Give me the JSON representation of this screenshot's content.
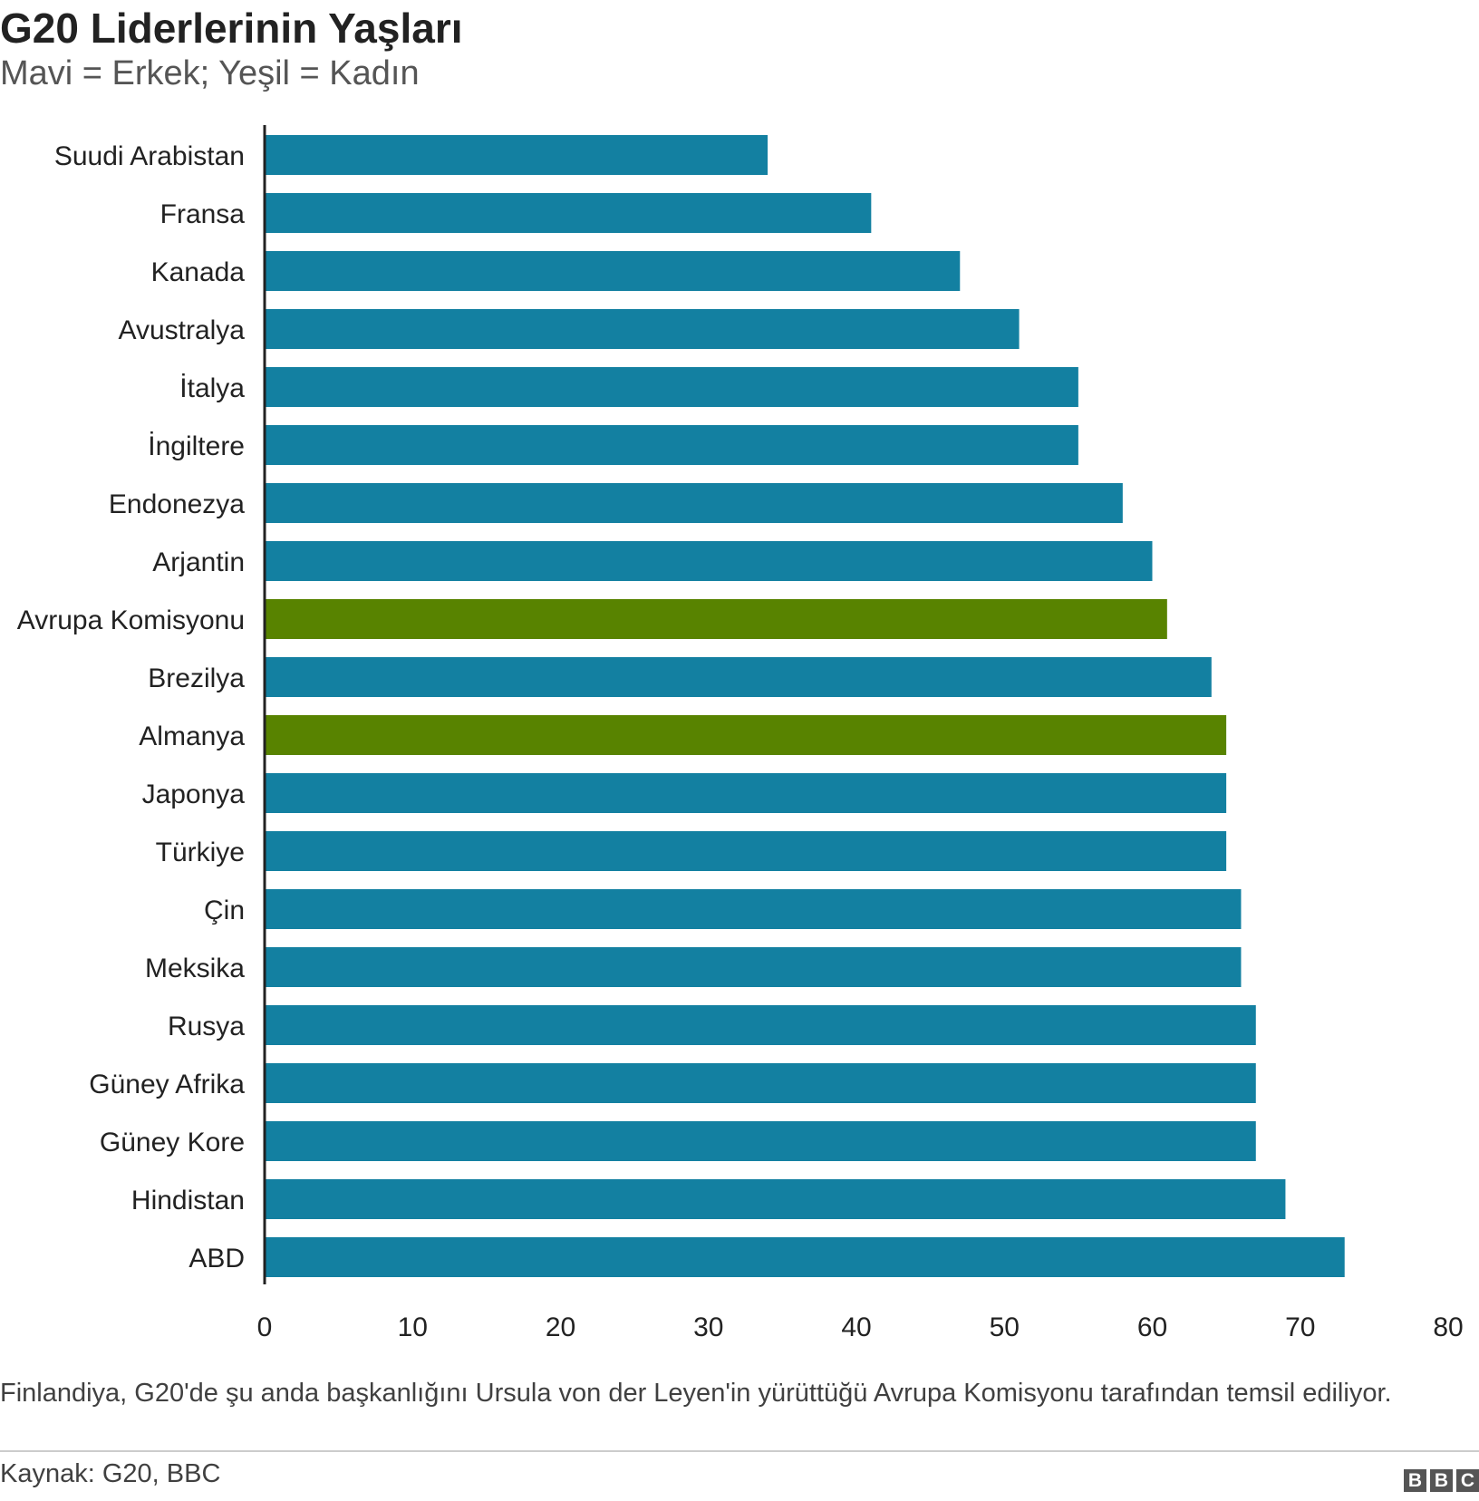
{
  "chart_data": {
    "type": "bar",
    "orientation": "horizontal",
    "title": "G20 Liderlerinin Yaşları",
    "subtitle": "Mavi = Erkek; Yeşil = Kadın",
    "categories": [
      "Suudi Arabistan",
      "Fransa",
      "Kanada",
      "Avustralya",
      "İtalya",
      "İngiltere",
      "Endonezya",
      "Arjantin",
      "Avrupa Komisyonu",
      "Brezilya",
      "Almanya",
      "Japonya",
      "Türkiye",
      "Çin",
      "Meksika",
      "Rusya",
      "Güney Afrika",
      "Güney Kore",
      "Hindistan",
      "ABD"
    ],
    "values": [
      34,
      41,
      47,
      51,
      55,
      55,
      58,
      60,
      61,
      64,
      65,
      65,
      65,
      66,
      66,
      67,
      67,
      67,
      69,
      73
    ],
    "gender": [
      "m",
      "m",
      "m",
      "m",
      "m",
      "m",
      "m",
      "m",
      "f",
      "m",
      "f",
      "m",
      "m",
      "m",
      "m",
      "m",
      "m",
      "m",
      "m",
      "m"
    ],
    "colors": {
      "m": "#1380A1",
      "f": "#588300"
    },
    "xlim": [
      0,
      80
    ],
    "xticks": [
      0,
      10,
      20,
      30,
      40,
      50,
      60,
      70,
      80
    ],
    "grid": false,
    "note": "Finlandiya, G20'de şu anda başkanlığını Ursula von der Leyen'in yürüttüğü Avrupa Komisyonu tarafından temsil ediliyor.",
    "source": "Kaynak: G20, BBC",
    "logo": [
      "B",
      "B",
      "C"
    ]
  }
}
